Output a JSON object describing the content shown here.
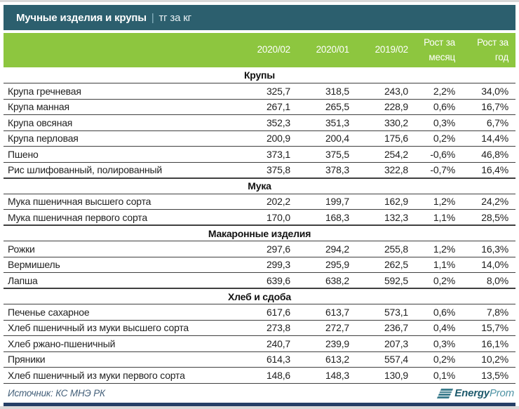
{
  "title_bar": {
    "title": "Мучные изделия и крупы",
    "separator": "|",
    "unit": "тг за кг"
  },
  "colors": {
    "top_bar": "#2C5F6E",
    "header_green": "#8DC63F",
    "bottom_bar": "#263F66",
    "logo_teal": "#3E7E8E",
    "row_border": "#3F3F3F"
  },
  "chart_data": {
    "type": "table",
    "title": "Мучные изделия и крупы",
    "unit": "тг за кг",
    "columns": [
      "2020/02",
      "2020/01",
      "2019/02",
      "Рост за месяц",
      "Рост за год"
    ],
    "sections": [
      {
        "name": "Крупы",
        "rows": [
          [
            "Крупа гречневая",
            "325,7",
            "318,5",
            "243,0",
            "2,2%",
            "34,0%"
          ],
          [
            "Крупа манная",
            "267,1",
            "265,5",
            "228,9",
            "0,6%",
            "16,7%"
          ],
          [
            "Крупа овсяная",
            "352,3",
            "351,3",
            "330,2",
            "0,3%",
            "6,7%"
          ],
          [
            "Крупа перловая",
            "200,9",
            "200,4",
            "175,6",
            "0,2%",
            "14,4%"
          ],
          [
            "Пшено",
            "373,1",
            "375,5",
            "254,2",
            "-0,6%",
            "46,8%"
          ],
          [
            "Рис шлифованный, полированный",
            "375,8",
            "378,3",
            "322,8",
            "-0,7%",
            "16,4%"
          ]
        ]
      },
      {
        "name": "Мука",
        "rows": [
          [
            "Мука пшеничная высшего сорта",
            "202,2",
            "199,7",
            "162,9",
            "1,2%",
            "24,2%"
          ],
          [
            "Мука пшеничная первого сорта",
            "170,0",
            "168,3",
            "132,3",
            "1,1%",
            "28,5%"
          ]
        ]
      },
      {
        "name": "Макаронные изделия",
        "rows": [
          [
            "Рожки",
            "297,6",
            "294,2",
            "255,8",
            "1,2%",
            "16,3%"
          ],
          [
            "Вермишель",
            "299,3",
            "295,9",
            "262,5",
            "1,1%",
            "14,0%"
          ],
          [
            "Лапша",
            "639,6",
            "638,2",
            "592,5",
            "0,2%",
            "8,0%"
          ]
        ]
      },
      {
        "name": "Хлеб и сдоба",
        "rows": [
          [
            "Печенье сахарное",
            "617,6",
            "613,7",
            "573,1",
            "0,6%",
            "7,8%"
          ],
          [
            "Хлеб пшеничный из муки высшего сорта",
            "273,8",
            "272,7",
            "236,7",
            "0,4%",
            "15,7%"
          ],
          [
            "Хлеб ржано-пшеничный",
            "240,7",
            "239,9",
            "207,3",
            "0,3%",
            "16,1%"
          ],
          [
            "Пряники",
            "614,3",
            "613,2",
            "557,4",
            "0,2%",
            "10,2%"
          ],
          [
            "Хлеб пшеничный из муки первого сорта",
            "148,6",
            "148,3",
            "130,9",
            "0,1%",
            "13,5%"
          ]
        ]
      }
    ]
  },
  "footer": {
    "source": "Источник: КС МНЭ РК",
    "logo_bold": "Energy",
    "logo_light": "Prom"
  }
}
